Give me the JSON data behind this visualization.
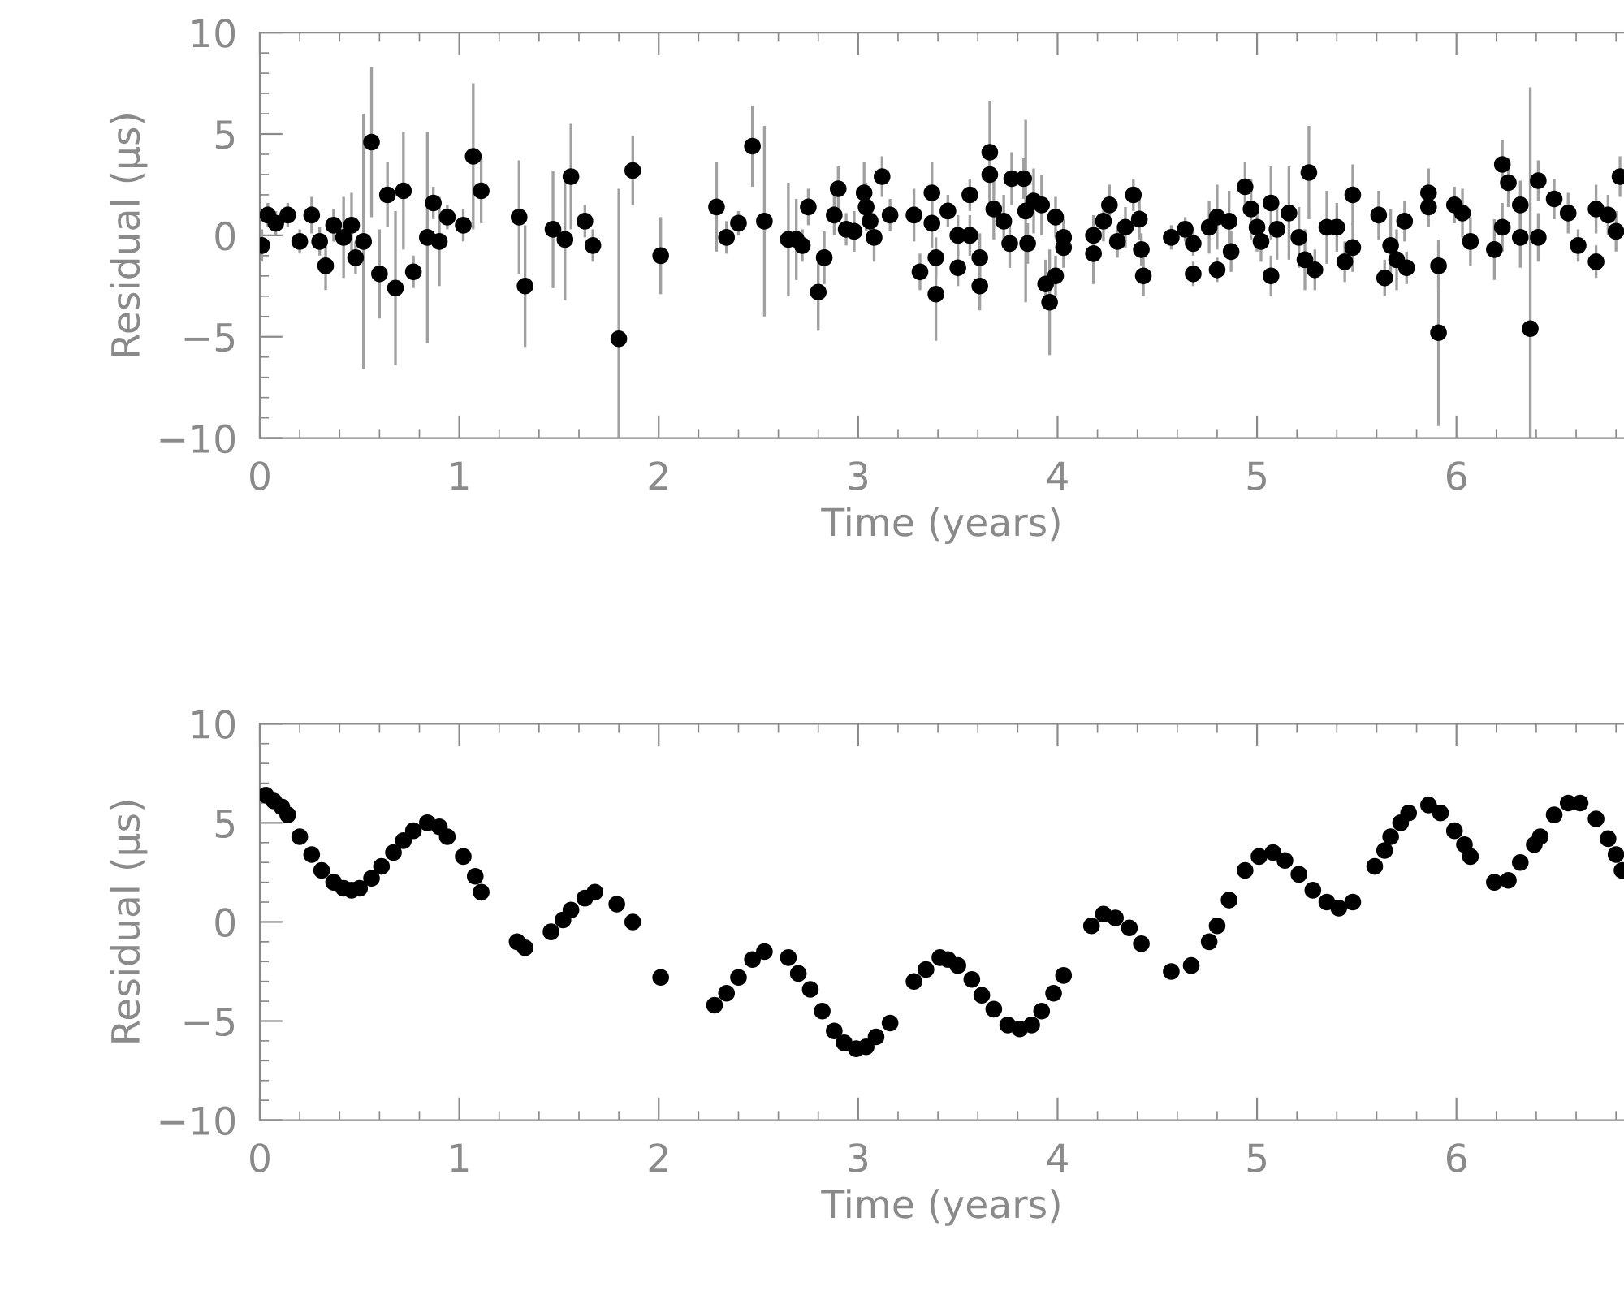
{
  "chart_data": [
    {
      "type": "scatter",
      "xlabel": "Time (years)",
      "ylabel": "Residual (μs)",
      "marker": "circle",
      "grid": false,
      "legend": false,
      "xlim": [
        0,
        6.84
      ],
      "xticks": [
        0,
        1,
        2,
        3,
        4,
        5,
        6
      ],
      "ylim": [
        -10,
        10
      ],
      "yticks": [
        -10,
        -5,
        0,
        5,
        10
      ],
      "series": [
        {
          "color": "#000000",
          "x": [
            0.01,
            0.04,
            0.08,
            0.14,
            0.2,
            0.26,
            0.3,
            0.33,
            0.37,
            0.42,
            0.46,
            0.48,
            0.52,
            0.56,
            0.6,
            0.64,
            0.68,
            0.72,
            0.77,
            0.84,
            0.87,
            0.9,
            0.94,
            1.02,
            1.07,
            1.11,
            1.3,
            1.33,
            1.47,
            1.53,
            1.56,
            1.63,
            1.67,
            1.8,
            1.87,
            2.01,
            2.29,
            2.34,
            2.4,
            2.47,
            2.53,
            2.65,
            2.69,
            2.72,
            2.75,
            2.8,
            2.83,
            2.88,
            2.9,
            2.94,
            2.98,
            3.03,
            3.04,
            3.06,
            3.08,
            3.12,
            3.16,
            3.28,
            3.31,
            3.37,
            3.37,
            3.39,
            3.39,
            3.45,
            3.5,
            3.5,
            3.56,
            3.56,
            3.61,
            3.61,
            3.66,
            3.66,
            3.68,
            3.73,
            3.76,
            3.77,
            3.83,
            3.84,
            3.85,
            3.88,
            3.92,
            3.94,
            3.96,
            3.99,
            3.99,
            4.03,
            4.03,
            4.18,
            4.18,
            4.23,
            4.26,
            4.3,
            4.34,
            4.38,
            4.41,
            4.42,
            4.43,
            4.57,
            4.64,
            4.68,
            4.68,
            4.76,
            4.8,
            4.8,
            4.86,
            4.87,
            4.94,
            4.97,
            5.0,
            5.02,
            5.07,
            5.07,
            5.1,
            5.16,
            5.21,
            5.24,
            5.26,
            5.29,
            5.35,
            5.4,
            5.44,
            5.48,
            5.48,
            5.61,
            5.64,
            5.67,
            5.7,
            5.74,
            5.75,
            5.86,
            5.86,
            5.91,
            5.91,
            5.99,
            6.03,
            6.07,
            6.19,
            6.23,
            6.23,
            6.26,
            6.32,
            6.32,
            6.37,
            6.41,
            6.41,
            6.49,
            6.56,
            6.61,
            6.7,
            6.7,
            6.76,
            6.8,
            6.82
          ],
          "values": [
            -0.5,
            1.0,
            0.6,
            1.0,
            -0.3,
            1.0,
            -0.3,
            -1.5,
            0.5,
            -0.1,
            0.5,
            -1.1,
            -0.3,
            4.6,
            -1.9,
            2.0,
            -2.6,
            2.2,
            -1.8,
            -0.1,
            1.6,
            -0.3,
            0.9,
            0.5,
            3.9,
            2.2,
            0.9,
            -2.5,
            0.3,
            -0.2,
            2.9,
            0.7,
            -0.5,
            -5.1,
            3.2,
            -1.0,
            1.4,
            -0.1,
            0.6,
            4.4,
            0.7,
            -0.2,
            -0.2,
            -0.5,
            1.4,
            -2.8,
            -1.1,
            1.0,
            2.3,
            0.3,
            0.2,
            2.1,
            1.4,
            0.7,
            -0.1,
            2.9,
            1.0,
            1.0,
            -1.8,
            2.1,
            0.6,
            -1.1,
            -2.9,
            1.2,
            0.0,
            -1.6,
            2.0,
            0.0,
            -1.1,
            -2.5,
            4.1,
            3.0,
            1.3,
            0.7,
            -0.4,
            2.8,
            2.8,
            1.2,
            -0.4,
            1.7,
            1.5,
            -2.4,
            -3.3,
            -2.0,
            0.9,
            -0.1,
            -0.6,
            -0.9,
            0.0,
            0.7,
            1.5,
            -0.3,
            0.4,
            2.0,
            0.8,
            -0.7,
            -2.0,
            -0.1,
            0.3,
            -1.9,
            -0.4,
            0.4,
            0.9,
            -1.7,
            0.7,
            -0.8,
            2.4,
            1.3,
            0.4,
            -0.3,
            1.6,
            -2.0,
            0.3,
            1.1,
            -0.1,
            -1.2,
            3.1,
            -1.7,
            0.4,
            0.4,
            -1.3,
            2.0,
            -0.6,
            1.0,
            -2.1,
            -0.5,
            -1.2,
            0.7,
            -1.6,
            2.1,
            1.4,
            -1.5,
            -4.8,
            1.5,
            1.1,
            -0.3,
            -0.7,
            0.4,
            3.5,
            2.6,
            1.5,
            -0.1,
            -4.6,
            2.7,
            -0.1,
            1.8,
            1.1,
            -0.5,
            1.3,
            -1.3,
            1.0,
            0.2,
            2.9
          ],
          "errors": [
            0.8,
            0.6,
            0.6,
            0.6,
            0.6,
            0.9,
            0.7,
            1.2,
            0.8,
            2.0,
            1.6,
            0.8,
            6.3,
            3.7,
            2.2,
            1.6,
            3.8,
            2.9,
            0.8,
            5.2,
            0.8,
            2.2,
            0.6,
            0.8,
            3.6,
            1.6,
            2.8,
            3.0,
            2.9,
            3.0,
            2.6,
            0.8,
            0.8,
            [
              -10,
              2.3
            ],
            1.7,
            1.9,
            2.2,
            0.8,
            0.6,
            2.0,
            4.7,
            2.8,
            2.0,
            0.8,
            0.9,
            1.9,
            1.3,
            1.0,
            1.1,
            0.8,
            1.0,
            1.5,
            1.2,
            1.0,
            1.2,
            1.0,
            0.8,
            1.3,
            0.9,
            1.5,
            1.2,
            1.0,
            2.3,
            0.8,
            1.0,
            0.9,
            0.8,
            1.0,
            1.2,
            1.2,
            2.5,
            1.2,
            1.5,
            1.3,
            1.2,
            1.3,
            1.0,
            4.5,
            1.0,
            1.6,
            1.5,
            1.2,
            2.6,
            1.0,
            1.0,
            0.9,
            1.0,
            1.5,
            1.0,
            1.0,
            1.0,
            0.8,
            1.0,
            0.8,
            1.0,
            0.8,
            1.0,
            0.6,
            0.6,
            0.6,
            0.6,
            1.3,
            1.6,
            0.6,
            1.5,
            1.0,
            1.2,
            1.5,
            1.2,
            1.0,
            1.8,
            1.0,
            1.5,
            2.3,
            1.5,
            1.5,
            2.3,
            1.0,
            1.8,
            1.2,
            1.0,
            1.5,
            1.2,
            1.2,
            0.9,
            1.8,
            1.5,
            1.0,
            0.8,
            1.2,
            1.0,
            1.2,
            4.6,
            0.9,
            1.2,
            1.2,
            1.5,
            1.2,
            1.2,
            1.2,
            1.2,
            1.5,
            [
              -10,
              7.3
            ],
            1.0,
            1.2,
            1.0,
            1.0,
            0.8,
            1.2,
            0.8,
            1.0,
            1.0,
            1.0
          ]
        }
      ]
    },
    {
      "type": "scatter",
      "xlabel": "Time (years)",
      "ylabel": "Residual (μs)",
      "marker": "circle",
      "grid": false,
      "legend": false,
      "xlim": [
        0,
        6.84
      ],
      "xticks": [
        0,
        1,
        2,
        3,
        4,
        5,
        6
      ],
      "ylim": [
        -10,
        10
      ],
      "yticks": [
        -10,
        -5,
        0,
        5,
        10
      ],
      "series": [
        {
          "color": "#000000",
          "x": [
            0.03,
            0.07,
            0.11,
            0.14,
            0.2,
            0.26,
            0.31,
            0.37,
            0.42,
            0.46,
            0.5,
            0.56,
            0.61,
            0.67,
            0.72,
            0.77,
            0.84,
            0.9,
            0.94,
            1.02,
            1.08,
            1.11,
            1.29,
            1.33,
            1.46,
            1.52,
            1.56,
            1.63,
            1.68,
            1.79,
            1.87,
            2.01,
            2.28,
            2.34,
            2.4,
            2.47,
            2.53,
            2.65,
            2.7,
            2.76,
            2.82,
            2.88,
            2.93,
            2.99,
            3.04,
            3.09,
            3.16,
            3.28,
            3.34,
            3.41,
            3.45,
            3.5,
            3.57,
            3.62,
            3.68,
            3.75,
            3.81,
            3.87,
            3.92,
            3.98,
            4.03,
            4.17,
            4.23,
            4.29,
            4.36,
            4.42,
            4.57,
            4.67,
            4.76,
            4.8,
            4.86,
            4.94,
            5.01,
            5.08,
            5.14,
            5.21,
            5.28,
            5.35,
            5.41,
            5.48,
            5.59,
            5.64,
            5.67,
            5.72,
            5.76,
            5.86,
            5.92,
            5.99,
            6.04,
            6.07,
            6.19,
            6.26,
            6.32,
            6.39,
            6.42,
            6.49,
            6.56,
            6.62,
            6.7,
            6.76,
            6.8,
            6.83
          ],
          "values": [
            6.4,
            6.1,
            5.8,
            5.4,
            4.3,
            3.4,
            2.6,
            2.0,
            1.7,
            1.6,
            1.7,
            2.2,
            2.8,
            3.5,
            4.1,
            4.6,
            5.0,
            4.8,
            4.3,
            3.3,
            2.3,
            1.5,
            -1.0,
            -1.3,
            -0.5,
            0.1,
            0.6,
            1.2,
            1.5,
            0.9,
            0.0,
            -2.8,
            -4.2,
            -3.6,
            -2.8,
            -1.9,
            -1.5,
            -1.8,
            -2.6,
            -3.4,
            -4.5,
            -5.5,
            -6.1,
            -6.4,
            -6.3,
            -5.8,
            -5.1,
            -3.0,
            -2.4,
            -1.8,
            -1.9,
            -2.2,
            -2.9,
            -3.7,
            -4.4,
            -5.2,
            -5.4,
            -5.2,
            -4.5,
            -3.6,
            -2.7,
            -0.2,
            0.4,
            0.2,
            -0.3,
            -1.1,
            -2.5,
            -2.2,
            -1.0,
            -0.2,
            1.1,
            2.6,
            3.3,
            3.5,
            3.1,
            2.4,
            1.6,
            1.0,
            0.7,
            1.0,
            2.8,
            3.6,
            4.3,
            5.0,
            5.5,
            5.9,
            5.5,
            4.6,
            3.9,
            3.3,
            2.0,
            2.1,
            3.0,
            3.9,
            4.3,
            5.4,
            6.0,
            6.0,
            5.2,
            4.2,
            3.4,
            2.6
          ]
        }
      ]
    }
  ]
}
